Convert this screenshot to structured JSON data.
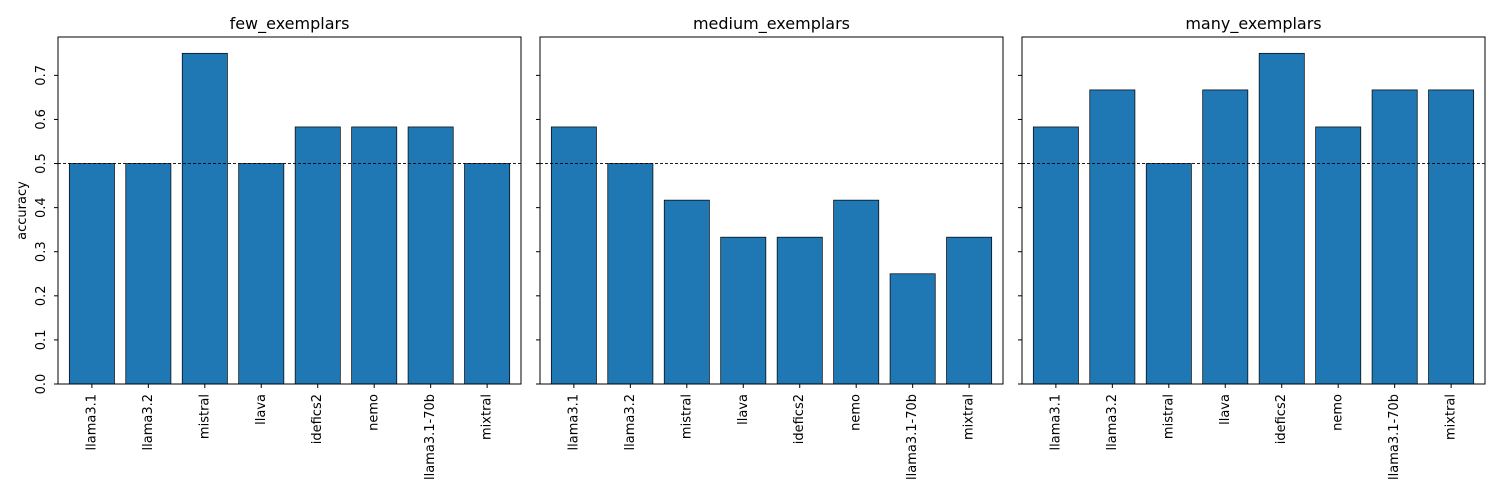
{
  "chart_data": [
    {
      "type": "bar",
      "title": "few_exemplars",
      "ylabel": "accuracy",
      "categories": [
        "llama3.1",
        "llama3.2",
        "mistral",
        "llava",
        "idefics2",
        "nemo",
        "llama3.1-70b",
        "mixtral"
      ],
      "values": [
        0.5,
        0.5,
        0.75,
        0.5,
        0.583,
        0.583,
        0.583,
        0.5
      ],
      "ylim": [
        0,
        0.787
      ],
      "yticks": [
        "0.0",
        "0.1",
        "0.2",
        "0.3",
        "0.4",
        "0.5",
        "0.6",
        "0.7"
      ],
      "reference_line": 0.5,
      "bar_color": "#1f77b4"
    },
    {
      "type": "bar",
      "title": "medium_exemplars",
      "ylabel": "",
      "categories": [
        "llama3.1",
        "llama3.2",
        "mistral",
        "llava",
        "idefics2",
        "nemo",
        "llama3.1-70b",
        "mixtral"
      ],
      "values": [
        0.583,
        0.5,
        0.417,
        0.333,
        0.333,
        0.417,
        0.25,
        0.333
      ],
      "ylim": [
        0,
        0.787
      ],
      "yticks": [],
      "reference_line": 0.5,
      "bar_color": "#1f77b4"
    },
    {
      "type": "bar",
      "title": "many_exemplars",
      "ylabel": "",
      "categories": [
        "llama3.1",
        "llama3.2",
        "mistral",
        "llava",
        "idefics2",
        "nemo",
        "llama3.1-70b",
        "mixtral"
      ],
      "values": [
        0.583,
        0.667,
        0.5,
        0.667,
        0.75,
        0.583,
        0.667,
        0.667
      ],
      "ylim": [
        0,
        0.787
      ],
      "yticks": [],
      "reference_line": 0.5,
      "bar_color": "#1f77b4"
    }
  ]
}
